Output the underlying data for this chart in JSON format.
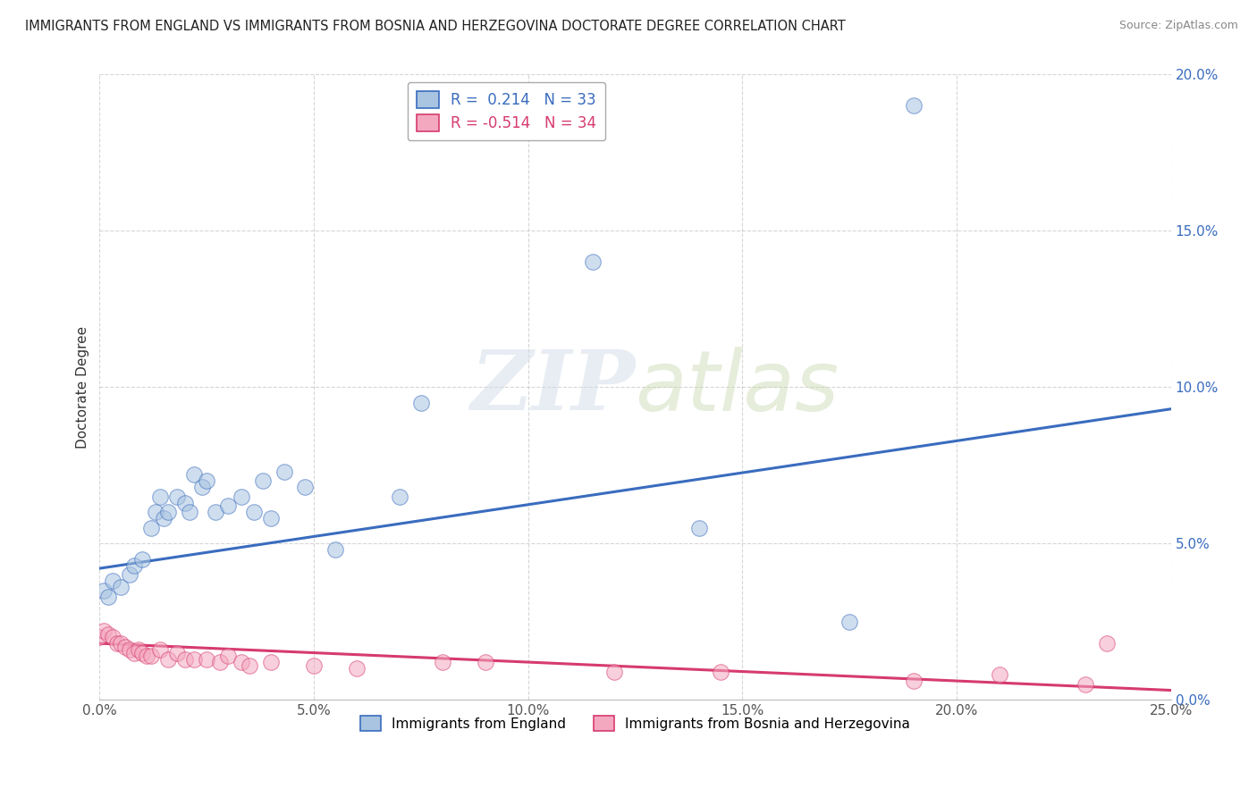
{
  "title": "IMMIGRANTS FROM ENGLAND VS IMMIGRANTS FROM BOSNIA AND HERZEGOVINA DOCTORATE DEGREE CORRELATION CHART",
  "source": "Source: ZipAtlas.com",
  "ylabel": "Doctorate Degree",
  "x_legend1": "Immigrants from England",
  "x_legend2": "Immigrants from Bosnia and Herzegovina",
  "R1": 0.214,
  "N1": 33,
  "R2": -0.514,
  "N2": 34,
  "xlim": [
    0.0,
    0.25
  ],
  "ylim": [
    0.0,
    0.2
  ],
  "xticks": [
    0.0,
    0.05,
    0.1,
    0.15,
    0.2,
    0.25
  ],
  "yticks": [
    0.0,
    0.05,
    0.1,
    0.15,
    0.2
  ],
  "xtick_labels": [
    "0.0%",
    "5.0%",
    "10.0%",
    "15.0%",
    "20.0%",
    "25.0%"
  ],
  "ytick_labels": [
    "0.0%",
    "5.0%",
    "10.0%",
    "15.0%",
    "20.0%"
  ],
  "color_england": "#a8c4e0",
  "color_bosnia": "#f4a8c0",
  "color_trendline_england": "#3a6cbf",
  "color_trendline_bosnia": "#d63b6e",
  "watermark_zip": "ZIP",
  "watermark_atlas": "atlas",
  "england_x": [
    0.001,
    0.002,
    0.003,
    0.005,
    0.007,
    0.008,
    0.01,
    0.012,
    0.013,
    0.014,
    0.015,
    0.016,
    0.018,
    0.02,
    0.021,
    0.022,
    0.024,
    0.025,
    0.027,
    0.03,
    0.033,
    0.036,
    0.038,
    0.04,
    0.043,
    0.048,
    0.055,
    0.07,
    0.075,
    0.115,
    0.14,
    0.175,
    0.19
  ],
  "england_y": [
    0.035,
    0.033,
    0.038,
    0.036,
    0.04,
    0.043,
    0.045,
    0.055,
    0.06,
    0.065,
    0.058,
    0.06,
    0.065,
    0.063,
    0.06,
    0.072,
    0.068,
    0.07,
    0.06,
    0.062,
    0.065,
    0.06,
    0.07,
    0.058,
    0.073,
    0.068,
    0.048,
    0.065,
    0.095,
    0.14,
    0.055,
    0.025,
    0.19
  ],
  "bosnia_x": [
    0.0,
    0.001,
    0.002,
    0.003,
    0.004,
    0.005,
    0.006,
    0.007,
    0.008,
    0.009,
    0.01,
    0.011,
    0.012,
    0.014,
    0.016,
    0.018,
    0.02,
    0.022,
    0.025,
    0.028,
    0.03,
    0.033,
    0.035,
    0.04,
    0.05,
    0.06,
    0.08,
    0.09,
    0.12,
    0.145,
    0.19,
    0.21,
    0.23,
    0.235
  ],
  "bosnia_y": [
    0.02,
    0.022,
    0.021,
    0.02,
    0.018,
    0.018,
    0.017,
    0.016,
    0.015,
    0.016,
    0.015,
    0.014,
    0.014,
    0.016,
    0.013,
    0.015,
    0.013,
    0.013,
    0.013,
    0.012,
    0.014,
    0.012,
    0.011,
    0.012,
    0.011,
    0.01,
    0.012,
    0.012,
    0.009,
    0.009,
    0.006,
    0.008,
    0.005,
    0.018
  ],
  "trend_eng_x0": 0.0,
  "trend_eng_y0": 0.042,
  "trend_eng_x1": 0.25,
  "trend_eng_y1": 0.093,
  "trend_bos_x0": 0.0,
  "trend_bos_y0": 0.018,
  "trend_bos_x1": 0.25,
  "trend_bos_y1": 0.003
}
